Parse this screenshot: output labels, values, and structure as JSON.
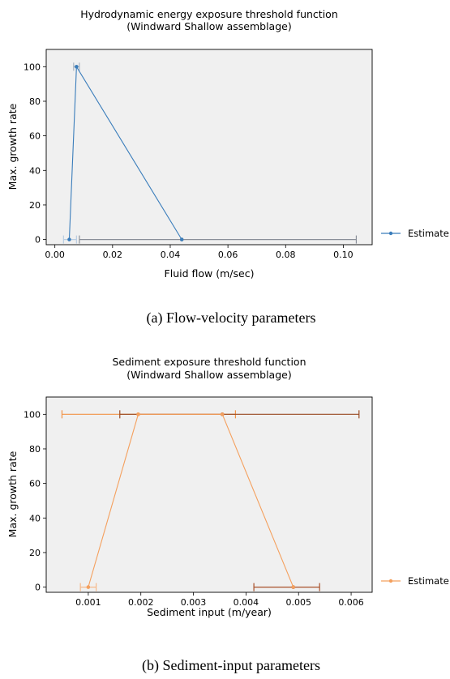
{
  "figure": {
    "caption_a": "(a) Flow-velocity parameters",
    "caption_b": "(b) Sediment-input parameters"
  },
  "chart_data": [
    {
      "type": "line",
      "title": "Hydrodynamic energy exposure threshold function",
      "subtitle": "(Windward Shallow assemblage)",
      "xlabel": "Fluid flow (m/sec)",
      "ylabel": "Max. growth rate",
      "xlim": [
        -0.003,
        0.11
      ],
      "ylim": [
        -3,
        110
      ],
      "xticks": [
        "0.00",
        "0.02",
        "0.04",
        "0.06",
        "0.08",
        "0.10"
      ],
      "xtick_values": [
        0,
        0.02,
        0.04,
        0.06,
        0.08,
        0.1
      ],
      "yticks": [
        "0",
        "20",
        "40",
        "60",
        "80",
        "100"
      ],
      "ytick_values": [
        0,
        20,
        40,
        60,
        80,
        100
      ],
      "grid": false,
      "legend_position": "right",
      "background": "#f0f0f0",
      "series": [
        {
          "name": "Estimate",
          "color": "#3a7dbb",
          "x": [
            0.005,
            0.0075,
            0.044
          ],
          "y": [
            0,
            100,
            0
          ]
        }
      ],
      "error_bars": [
        {
          "y": 0,
          "xmin": 0.003,
          "xmax": 0.0075,
          "center": 0.005,
          "color": "#b9cde2"
        },
        {
          "y": 100,
          "xmin": 0.0065,
          "xmax": 0.0085,
          "center": 0.0075,
          "color": "#a7b3c0"
        },
        {
          "y": 0,
          "xmin": 0.0085,
          "xmax": 0.1045,
          "center": 0.044,
          "color": "#8a8f99"
        }
      ]
    },
    {
      "type": "line",
      "title": "Sediment exposure threshold function",
      "subtitle": "(Windward Shallow assemblage)",
      "xlabel": "Sediment input (m/year)",
      "ylabel": "Max. growth rate",
      "xlim": [
        0.0002,
        0.0064
      ],
      "ylim": [
        -3,
        110
      ],
      "xticks": [
        "0.001",
        "0.002",
        "0.003",
        "0.004",
        "0.005",
        "0.006"
      ],
      "xtick_values": [
        0.001,
        0.002,
        0.003,
        0.004,
        0.005,
        0.006
      ],
      "yticks": [
        "0",
        "20",
        "40",
        "60",
        "80",
        "100"
      ],
      "ytick_values": [
        0,
        20,
        40,
        60,
        80,
        100
      ],
      "grid": false,
      "legend_position": "right",
      "background": "#f0f0f0",
      "series": [
        {
          "name": "Estimate",
          "color": "#f4a05e",
          "x": [
            0.001,
            0.00195,
            0.00355,
            0.0049
          ],
          "y": [
            0,
            100,
            100,
            0
          ]
        }
      ],
      "error_bars": [
        {
          "y": 0,
          "xmin": 0.00085,
          "xmax": 0.00115,
          "center": 0.001,
          "color": "#f6b98a"
        },
        {
          "y": 100,
          "xmin": 0.0005,
          "xmax": 0.0038,
          "center": 0.00195,
          "color": "#f29447"
        },
        {
          "y": 100,
          "xmin": 0.0016,
          "xmax": 0.00615,
          "center": 0.00355,
          "color": "#9a4a23"
        },
        {
          "y": 0,
          "xmin": 0.00415,
          "xmax": 0.0054,
          "center": 0.0049,
          "color": "#a9502a"
        }
      ]
    }
  ]
}
